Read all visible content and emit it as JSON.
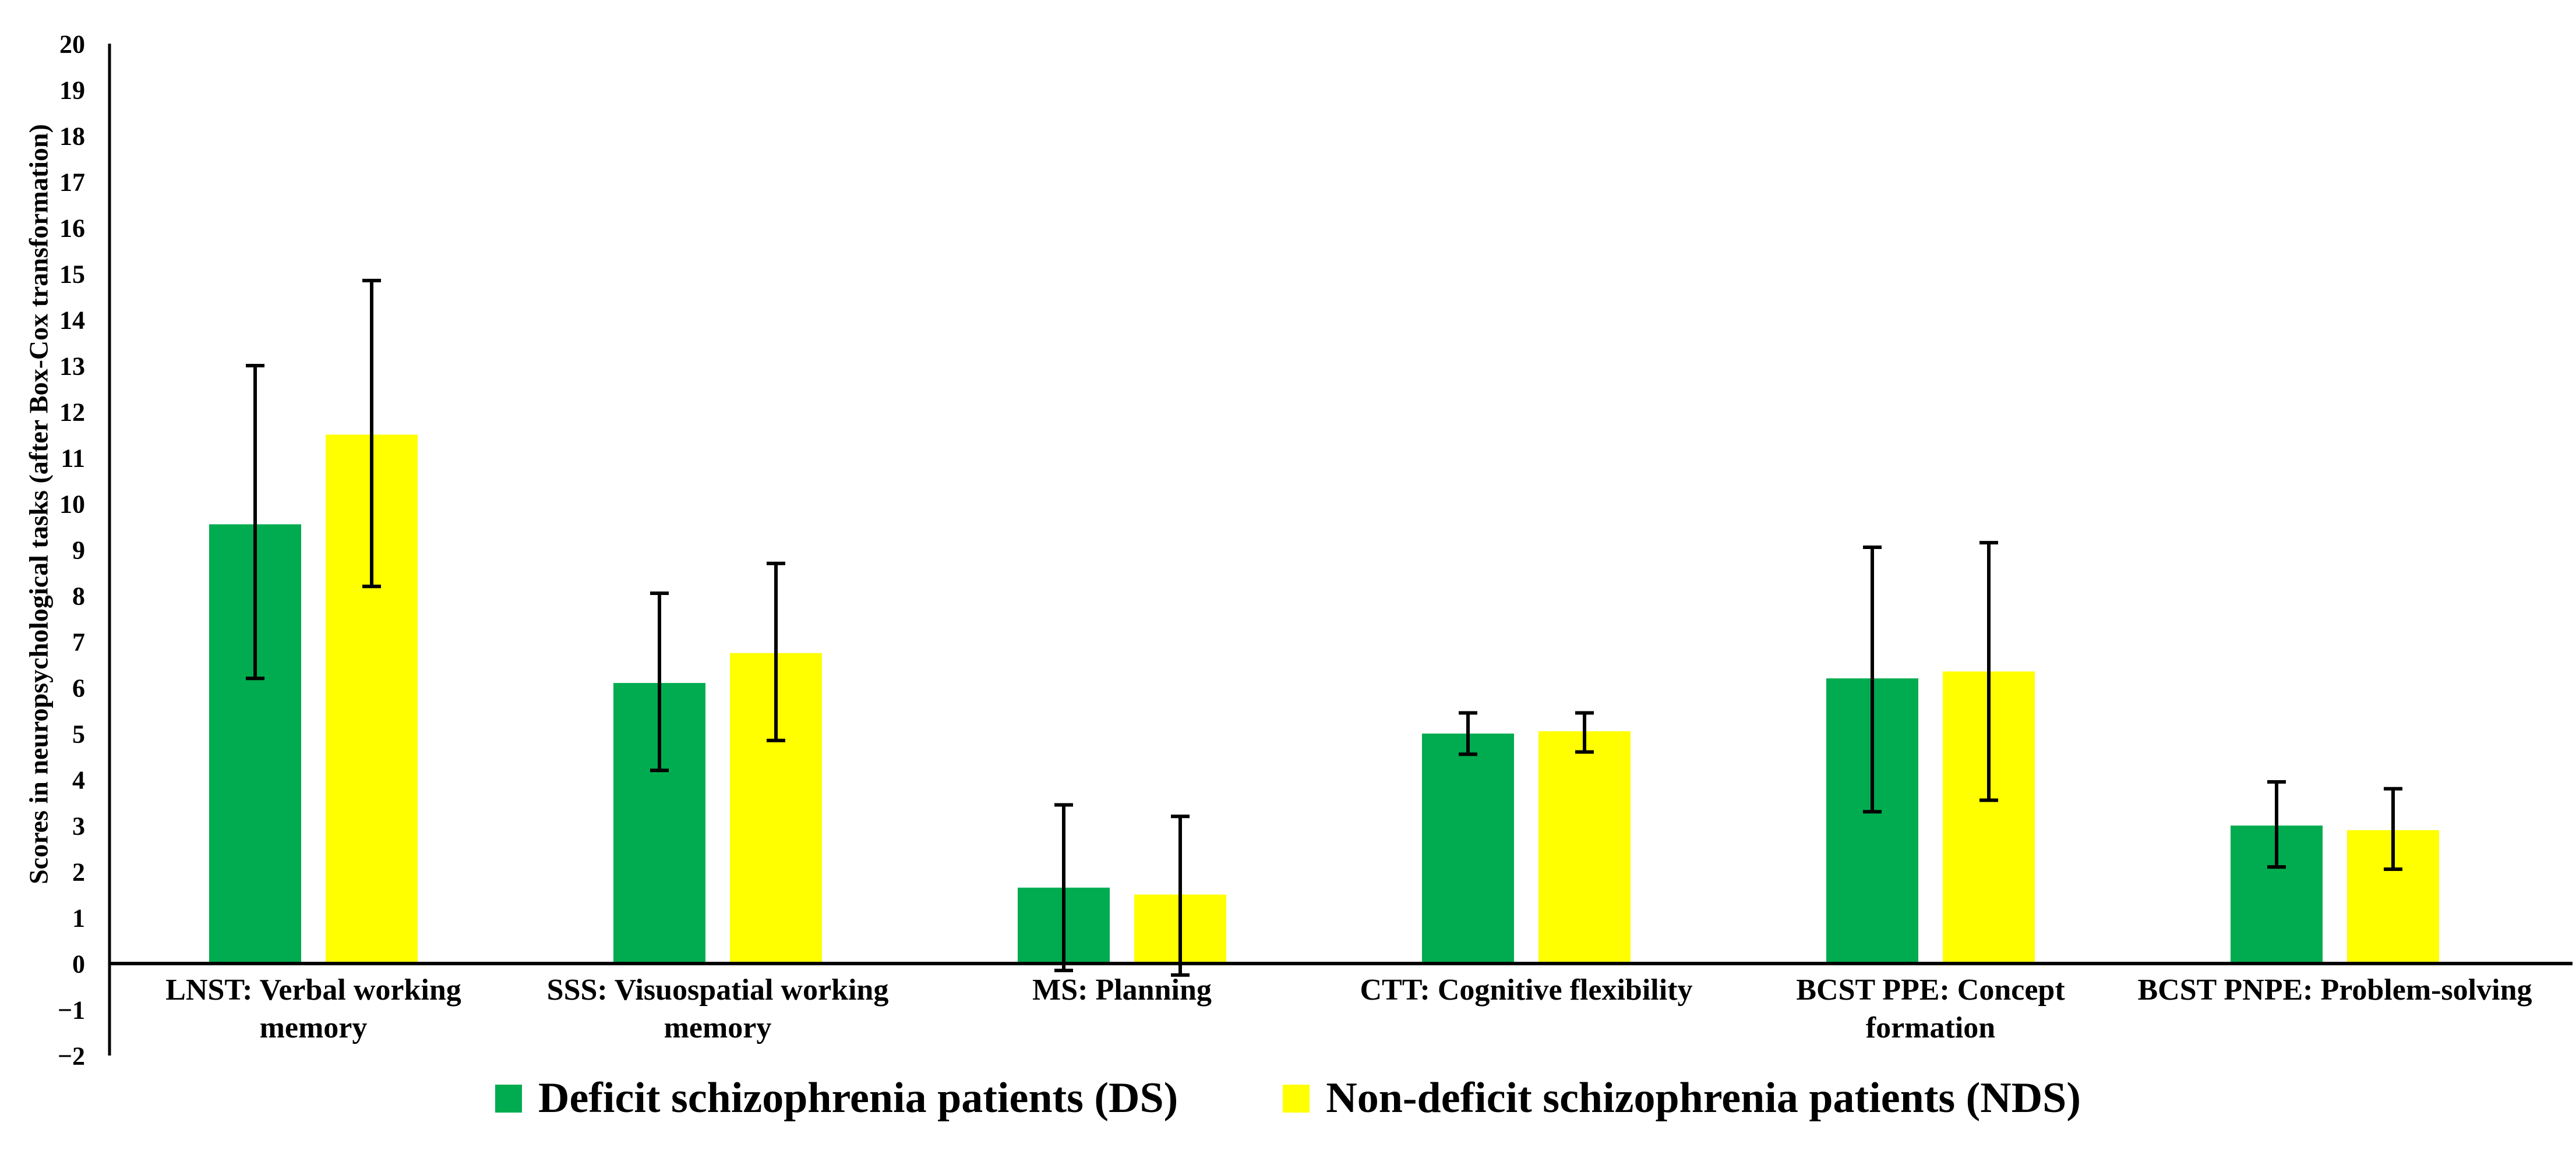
{
  "figure": {
    "background": "#FFFFFF"
  },
  "chart_data": {
    "type": "bar",
    "title": "",
    "xlabel": "",
    "ylabel": "Scores in neuropsychological tasks (after Box-Cox transformation)",
    "ylim": [
      -2,
      20
    ],
    "ytick_step": 1,
    "grid": false,
    "legend_position": "bottom",
    "axis_color": "#000000",
    "error_bar_color": "#000000",
    "categories": [
      "LNST: Verbal working memory",
      "SSS: Visuospatial working memory",
      "MS: Planning",
      "CTT: Cognitive flexibility",
      "BCST PPE: Concept formation",
      "BCST PNPE: Problem-solving"
    ],
    "series": [
      {
        "name": "Deficit schizophrenia patients (DS)",
        "color": "#00AC4F",
        "values": [
          9.55,
          6.1,
          1.65,
          5.0,
          6.2,
          3.0
        ],
        "error_low": [
          6.2,
          4.2,
          -0.15,
          4.55,
          3.3,
          2.1
        ],
        "error_high": [
          13.0,
          8.05,
          3.45,
          5.45,
          9.05,
          3.95
        ]
      },
      {
        "name": "Non-deficit schizophrenia patients (NDS)",
        "color": "#FFFF00",
        "values": [
          11.5,
          6.75,
          1.5,
          5.05,
          6.35,
          2.9
        ],
        "error_low": [
          8.2,
          4.85,
          -0.25,
          4.6,
          3.55,
          2.05
        ],
        "error_high": [
          14.85,
          8.7,
          3.2,
          5.45,
          9.15,
          3.8
        ]
      }
    ]
  }
}
